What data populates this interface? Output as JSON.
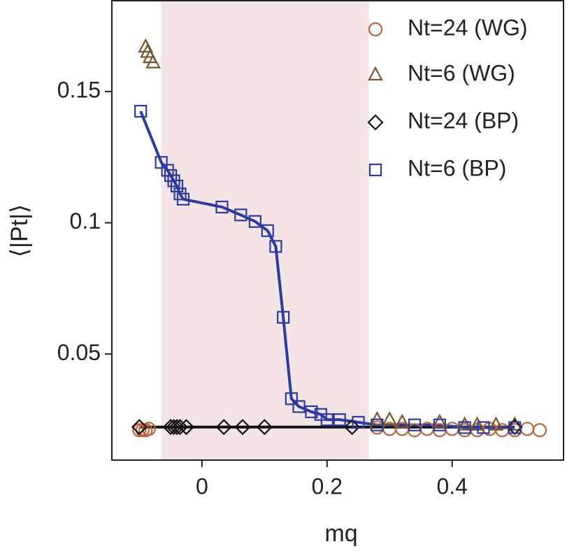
{
  "chart_data": {
    "type": "scatter",
    "xlabel": "mq",
    "ylabel": "⟨|Pt|⟩",
    "xlim": [
      -0.144,
      0.578
    ],
    "ylim": [
      0.0096,
      0.1846
    ],
    "xticks": [
      0,
      0.2,
      0.4
    ],
    "yticks": [
      0.05,
      0.1,
      0.15
    ],
    "shade": [
      -0.065,
      0.267
    ],
    "shade_color": "#f4e4e6",
    "legend": "upper right",
    "series": [
      {
        "name": "Nt=24 (WG)",
        "color": "#c0623a",
        "marker": "circle",
        "line": false,
        "x": [
          -0.1,
          -0.095,
          -0.09,
          -0.085,
          0.28,
          0.3,
          0.32,
          0.34,
          0.36,
          0.38,
          0.4,
          0.42,
          0.44,
          0.46,
          0.48,
          0.5,
          0.52,
          0.54
        ],
        "values": [
          0.021,
          0.021,
          0.021,
          0.0215,
          0.022,
          0.0215,
          0.0215,
          0.021,
          0.0215,
          0.021,
          0.0215,
          0.021,
          0.021,
          0.0215,
          0.021,
          0.021,
          0.0215,
          0.021
        ]
      },
      {
        "name": "Nt=6 (WG)",
        "color": "#7a5427",
        "marker": "triangle",
        "line": false,
        "x": [
          -0.09,
          -0.087,
          -0.083,
          -0.078,
          0.28,
          0.3,
          0.32,
          0.38,
          0.42,
          0.44,
          0.47,
          0.5
        ],
        "values": [
          0.167,
          0.165,
          0.163,
          0.161,
          0.025,
          0.025,
          0.024,
          0.024,
          0.023,
          0.023,
          0.023,
          0.023
        ]
      },
      {
        "name": "Nt=24 (BP)",
        "color": "#111111",
        "marker": "diamond",
        "line": true,
        "x": [
          -0.1,
          -0.05,
          -0.045,
          -0.04,
          -0.035,
          -0.025,
          0.035,
          0.065,
          0.1,
          0.24,
          0.5
        ],
        "values": [
          0.0222,
          0.0222,
          0.0222,
          0.0222,
          0.0222,
          0.0222,
          0.0222,
          0.0222,
          0.0222,
          0.0222,
          0.0222
        ]
      },
      {
        "name": "Nt=6 (BP)",
        "color": "#2b3ba6",
        "marker": "square",
        "line": true,
        "x": [
          -0.098,
          -0.065,
          -0.055,
          -0.05,
          -0.045,
          -0.04,
          -0.035,
          -0.03,
          0.032,
          0.062,
          0.085,
          0.105,
          0.118,
          0.13,
          0.143,
          0.155,
          0.175,
          0.19,
          0.2,
          0.22,
          0.25,
          0.28,
          0.34,
          0.38,
          0.42,
          0.45,
          0.5
        ],
        "values": [
          0.1425,
          0.123,
          0.12,
          0.118,
          0.116,
          0.114,
          0.111,
          0.109,
          0.106,
          0.103,
          0.1005,
          0.097,
          0.091,
          0.064,
          0.033,
          0.03,
          0.028,
          0.027,
          0.025,
          0.025,
          0.024,
          0.023,
          0.023,
          0.023,
          0.022,
          0.022,
          0.022
        ]
      }
    ]
  }
}
